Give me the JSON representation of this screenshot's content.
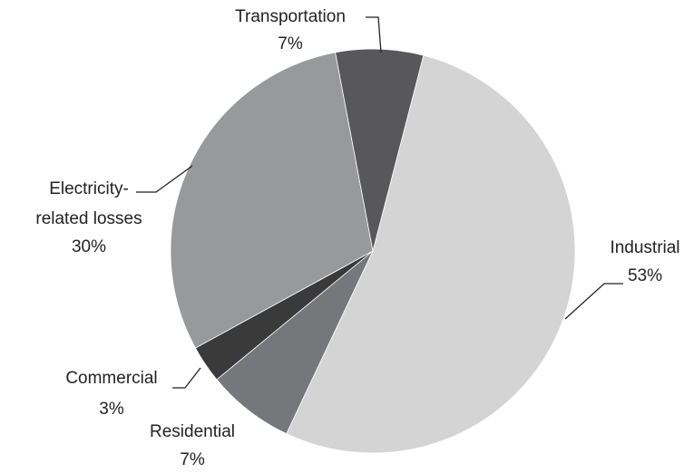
{
  "chart_data": {
    "type": "pie",
    "categories": [
      "Industrial",
      "Residential",
      "Commercial",
      "Electricity-related losses",
      "Transportation"
    ],
    "values": [
      53,
      7,
      3,
      30,
      7
    ],
    "value_labels": [
      "53%",
      "7%",
      "3%",
      "30%",
      "7%"
    ],
    "colors": [
      "#d4d4d5",
      "#76777a",
      "#3a3a3b",
      "#98999b",
      "#58585a"
    ]
  }
}
